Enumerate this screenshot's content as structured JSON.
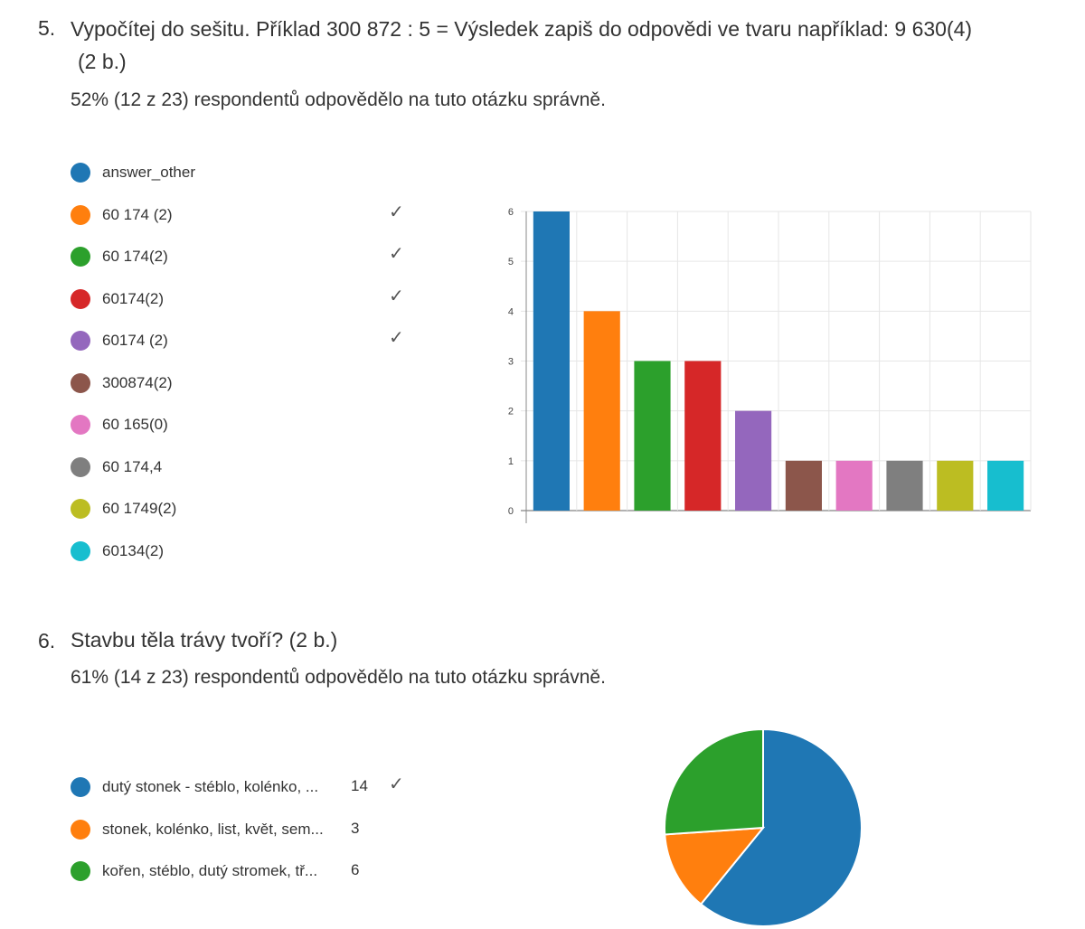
{
  "questions": [
    {
      "number": "5.",
      "title_line1": "Vypočítej do sešitu. Příklad 300 872 : 5 = Výsledek zapiš do odpovědi ve tvaru například: 9 630(4)",
      "title_line2": "(2 b.)",
      "stat": "52% (12 z 23) respondentů odpovědělo na tuto otázku správně."
    },
    {
      "number": "6.",
      "title_line1": "Stavbu těla trávy tvoří? (2 b.)",
      "stat": "61% (14 z 23) respondentů odpovědělo na tuto otázku správně."
    }
  ],
  "chart_data": [
    {
      "type": "bar",
      "legend_position": "left",
      "grid": true,
      "ylim": [
        0,
        6
      ],
      "yticks": [
        "0",
        "1",
        "2",
        "3",
        "4",
        "5",
        "6"
      ],
      "categories": [
        "answer_other",
        "60 174 (2)",
        "60 174(2)",
        "60174(2)",
        "60174 (2)",
        "300874(2)",
        "60 165(0)",
        "60 174,4",
        "60 1749(2)",
        "60134(2)"
      ],
      "values": [
        6,
        4,
        3,
        3,
        2,
        1,
        1,
        1,
        1,
        1
      ],
      "correct": [
        false,
        true,
        true,
        true,
        true,
        false,
        false,
        false,
        false,
        false
      ],
      "colors": [
        "#1f77b4",
        "#ff7f0e",
        "#2ca02c",
        "#d62728",
        "#9467bd",
        "#8c564b",
        "#e377c2",
        "#7f7f7f",
        "#bcbd22",
        "#17becf"
      ]
    },
    {
      "type": "pie",
      "legend_position": "left",
      "categories": [
        "dutý stonek - stéblo, kolénko, ...",
        "stonek, kolénko, list, květ, sem...",
        "kořen, stéblo, dutý stromek, tř..."
      ],
      "values": [
        14,
        3,
        6
      ],
      "value_labels": [
        "14",
        "3",
        "6"
      ],
      "correct": [
        true,
        false,
        false
      ],
      "colors": [
        "#1f77b4",
        "#ff7f0e",
        "#2ca02c"
      ]
    }
  ],
  "icons": {
    "correct": "check-icon",
    "check_glyph": "✓"
  }
}
